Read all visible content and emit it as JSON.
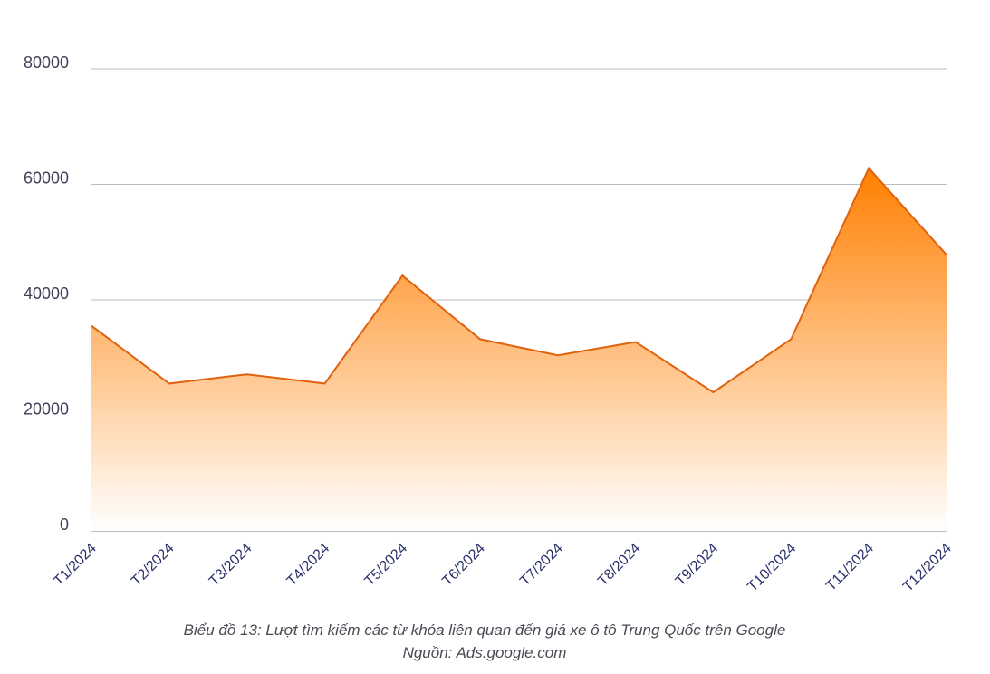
{
  "chart_data": {
    "type": "area",
    "categories": [
      "T1/2024",
      "T2/2024",
      "T3/2024",
      "T4/2024",
      "T5/2024",
      "T6/2024",
      "T7/2024",
      "T8/2024",
      "T9/2024",
      "T10/2024",
      "T11/2024",
      "T12/2024"
    ],
    "series": [
      {
        "values": [
          35500,
          25500,
          27100,
          25500,
          44200,
          33200,
          30400,
          32700,
          24000,
          33200,
          62800,
          47800
        ]
      }
    ],
    "yticks": [
      "0",
      "20000",
      "40000",
      "60000",
      "80000"
    ],
    "ylim": [
      0,
      80000
    ],
    "grid": true,
    "colors": {
      "line": "#e0620f",
      "fill_top": "#ff7f00",
      "fill_bottom": "#ffffff",
      "grid": "#bdbdbd"
    }
  },
  "caption": {
    "title": "Biểu đồ 13: Lượt tìm kiếm các từ khóa liên quan đến giá xe ô tô Trung Quốc trên Google",
    "source": "Nguồn: Ads.google.com"
  }
}
